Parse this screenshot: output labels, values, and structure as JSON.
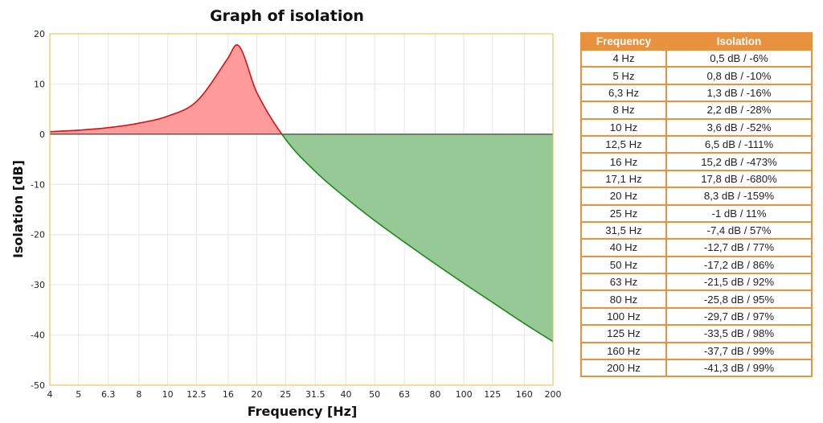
{
  "chart_data": {
    "type": "area",
    "title": "Graph of isolation",
    "xlabel": "Frequency [Hz]",
    "ylabel": "Isolation [dB]",
    "x_scale": "log",
    "xlim": [
      4,
      200
    ],
    "ylim": [
      -50,
      20
    ],
    "x_ticks": [
      "4",
      "5",
      "6.3",
      "8",
      "10",
      "12.5",
      "16",
      "20",
      "25",
      "31.5",
      "40",
      "50",
      "63",
      "80",
      "100",
      "125",
      "160",
      "200"
    ],
    "y_ticks": [
      20,
      10,
      0,
      -10,
      -20,
      -30,
      -40,
      -50
    ],
    "grid": true,
    "fill_positive_color": "#ff9b9b",
    "fill_negative_color": "#96c996",
    "line_positive_color": "#d11414",
    "line_negative_color": "#1a8a1a",
    "accent_color": "#e8913f",
    "x": [
      4,
      5,
      6.3,
      8,
      10,
      12.5,
      16,
      17.1,
      20,
      25,
      31.5,
      40,
      50,
      63,
      80,
      100,
      125,
      160,
      200
    ],
    "y": [
      0.5,
      0.8,
      1.3,
      2.2,
      3.6,
      6.5,
      15.2,
      17.8,
      8.3,
      -1,
      -7.4,
      -12.7,
      -17.2,
      -21.5,
      -25.8,
      -29.7,
      -33.5,
      -37.7,
      -41.3
    ]
  },
  "table": {
    "headers": [
      "Frequency",
      "Isolation"
    ],
    "rows": [
      [
        "4 Hz",
        "0,5 dB / -6%"
      ],
      [
        "5 Hz",
        "0,8 dB / -10%"
      ],
      [
        "6,3 Hz",
        "1,3 dB / -16%"
      ],
      [
        "8 Hz",
        "2,2 dB / -28%"
      ],
      [
        "10 Hz",
        "3,6 dB / -52%"
      ],
      [
        "12,5 Hz",
        "6,5 dB / -111%"
      ],
      [
        "16 Hz",
        "15,2 dB / -473%"
      ],
      [
        "17,1 Hz",
        "17,8 dB / -680%"
      ],
      [
        "20 Hz",
        "8,3 dB / -159%"
      ],
      [
        "25 Hz",
        "-1 dB / 11%"
      ],
      [
        "31,5 Hz",
        "-7,4 dB / 57%"
      ],
      [
        "40 Hz",
        "-12,7 dB / 77%"
      ],
      [
        "50 Hz",
        "-17,2 dB / 86%"
      ],
      [
        "63 Hz",
        "-21,5 dB / 92%"
      ],
      [
        "80 Hz",
        "-25,8 dB / 95%"
      ],
      [
        "100 Hz",
        "-29,7 dB / 97%"
      ],
      [
        "125 Hz",
        "-33,5 dB / 98%"
      ],
      [
        "160 Hz",
        "-37,7 dB / 99%"
      ],
      [
        "200 Hz",
        "-41,3 dB / 99%"
      ]
    ]
  }
}
